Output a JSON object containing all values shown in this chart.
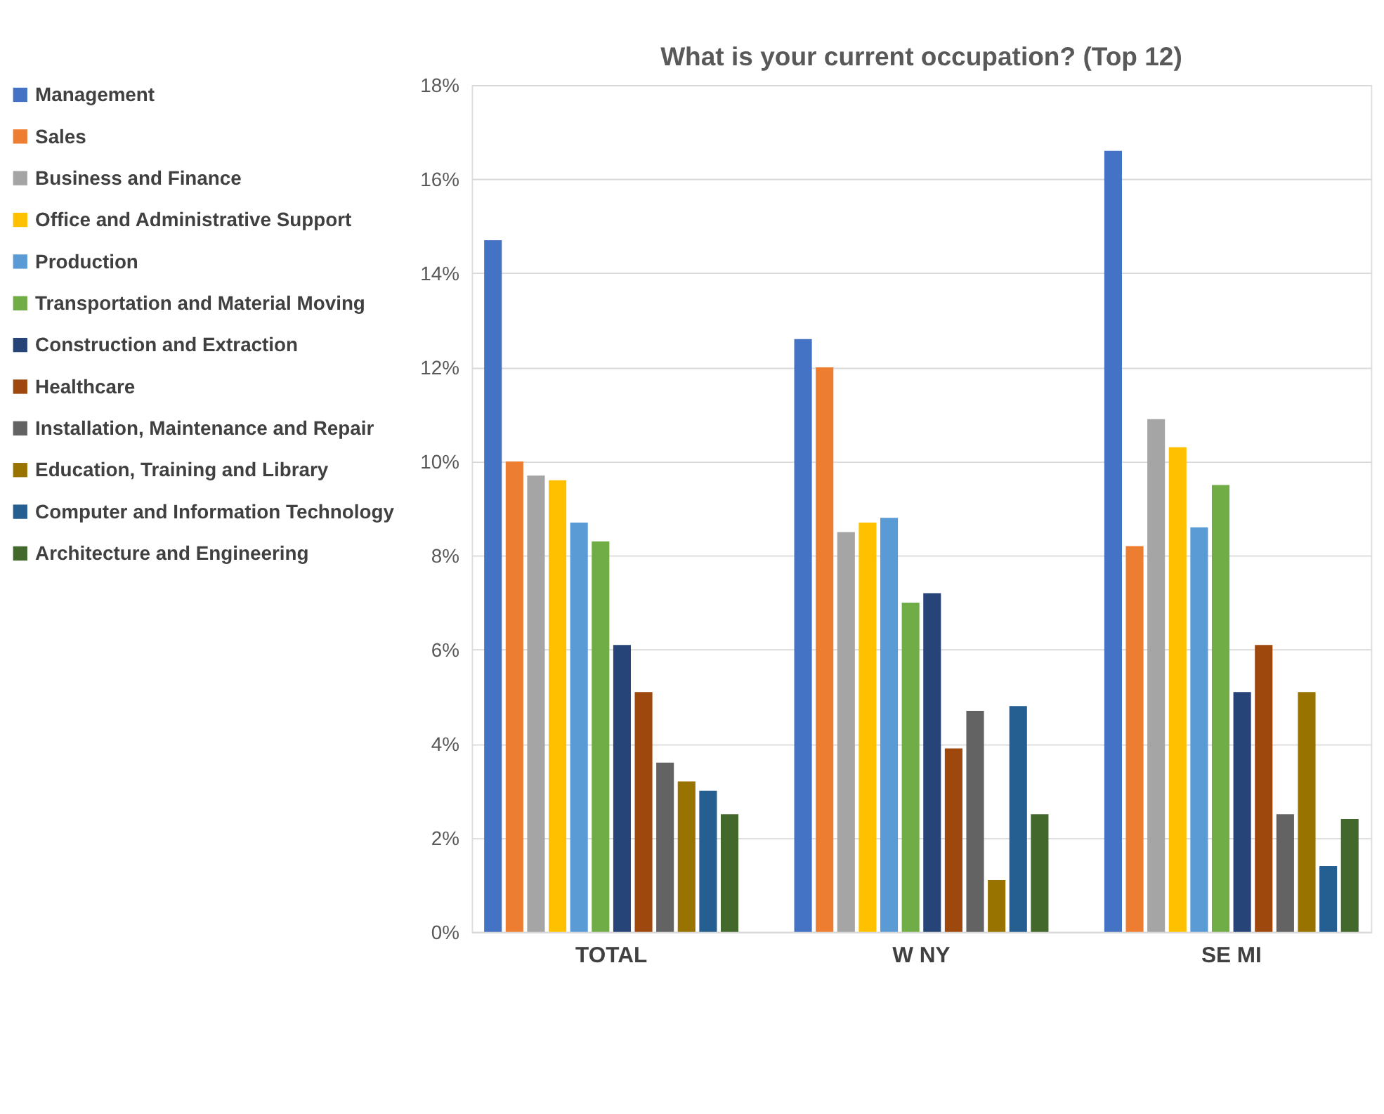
{
  "chart_data": {
    "type": "bar",
    "title": "What is your current occupation? (Top 12)",
    "categories": [
      "TOTAL",
      "W NY",
      "SE MI"
    ],
    "ylim": [
      0,
      18
    ],
    "yticks": [
      {
        "value": 0,
        "label": "0%"
      },
      {
        "value": 2,
        "label": "2%"
      },
      {
        "value": 4,
        "label": "4%"
      },
      {
        "value": 6,
        "label": "6%"
      },
      {
        "value": 8,
        "label": "8%"
      },
      {
        "value": 10,
        "label": "10%"
      },
      {
        "value": 12,
        "label": "12%"
      },
      {
        "value": 14,
        "label": "14%"
      },
      {
        "value": 16,
        "label": "16%"
      },
      {
        "value": 18,
        "label": "18%"
      }
    ],
    "grid": "y",
    "legend": "left",
    "series": [
      {
        "name": "Management",
        "color": "#4472c4",
        "values": [
          14.7,
          12.6,
          16.6
        ]
      },
      {
        "name": "Sales",
        "color": "#ed7d31",
        "values": [
          10.0,
          12.0,
          8.2
        ]
      },
      {
        "name": "Business and Finance",
        "color": "#a5a5a5",
        "values": [
          9.7,
          8.5,
          10.9
        ]
      },
      {
        "name": "Office and Administrative Support",
        "color": "#ffc000",
        "values": [
          9.6,
          8.7,
          10.3
        ]
      },
      {
        "name": "Production",
        "color": "#5b9bd5",
        "values": [
          8.7,
          8.8,
          8.6
        ]
      },
      {
        "name": "Transportation and Material Moving",
        "color": "#70ad47",
        "values": [
          8.3,
          7.0,
          9.5
        ]
      },
      {
        "name": "Construction and Extraction",
        "color": "#264478",
        "values": [
          6.1,
          7.2,
          5.1
        ]
      },
      {
        "name": "Healthcare",
        "color": "#9e480e",
        "values": [
          5.1,
          3.9,
          6.1
        ]
      },
      {
        "name": "Installation, Maintenance and Repair",
        "color": "#636363",
        "values": [
          3.6,
          4.7,
          2.5
        ]
      },
      {
        "name": "Education, Training and Library",
        "color": "#997300",
        "values": [
          3.2,
          1.1,
          5.1
        ]
      },
      {
        "name": "Computer and Information Technology",
        "color": "#255e91",
        "values": [
          3.0,
          4.8,
          1.4
        ]
      },
      {
        "name": "Architecture and Engineering",
        "color": "#43682b",
        "values": [
          2.5,
          2.5,
          2.4
        ]
      }
    ]
  }
}
